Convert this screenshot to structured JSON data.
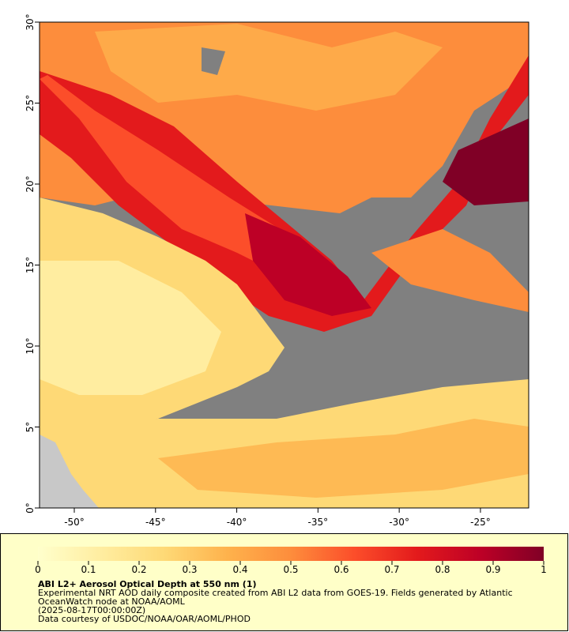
{
  "map": {
    "xlim": [
      -52.14,
      -22.03
    ],
    "ylim": [
      0,
      30
    ],
    "xticks": [
      {
        "value": -50,
        "label": "-50°"
      },
      {
        "value": -45,
        "label": "-45°"
      },
      {
        "value": -40,
        "label": "-40°"
      },
      {
        "value": -35,
        "label": "-35°"
      },
      {
        "value": -30,
        "label": "-30°"
      },
      {
        "value": -25,
        "label": "-25°"
      }
    ],
    "yticks": [
      {
        "value": 0,
        "label": "0°"
      },
      {
        "value": 5,
        "label": "5°"
      },
      {
        "value": 10,
        "label": "10°"
      },
      {
        "value": 15,
        "label": "15°"
      },
      {
        "value": 20,
        "label": "20°"
      },
      {
        "value": 25,
        "label": "25°"
      },
      {
        "value": 30,
        "label": "30°"
      }
    ]
  },
  "colorbar": {
    "range": [
      0,
      1
    ],
    "ticks": [
      0,
      0.1,
      0.2,
      0.3,
      0.4,
      0.5,
      0.6,
      0.7,
      0.8,
      0.9,
      1
    ],
    "colors": [
      "#ffffcc",
      "#ffeda0",
      "#fed976",
      "#feb24c",
      "#fd8d3c",
      "#fc4e2a",
      "#e31a1c",
      "#bd0026",
      "#800026"
    ]
  },
  "caption": {
    "title": "ABI L2+ Aerosol Optical Depth at 550 nm (1)",
    "lines": [
      "Experimental NRT AOD daily composite created from ABI L2 data from GOES-19. Fields generated by Atlantic",
      "OceanWatch node at NOAA/AOML",
      "(2025-08-17T00:00:00Z)",
      "Data courtesy of USDOC/NOAA/OAR/AOML/PHOD"
    ]
  }
}
